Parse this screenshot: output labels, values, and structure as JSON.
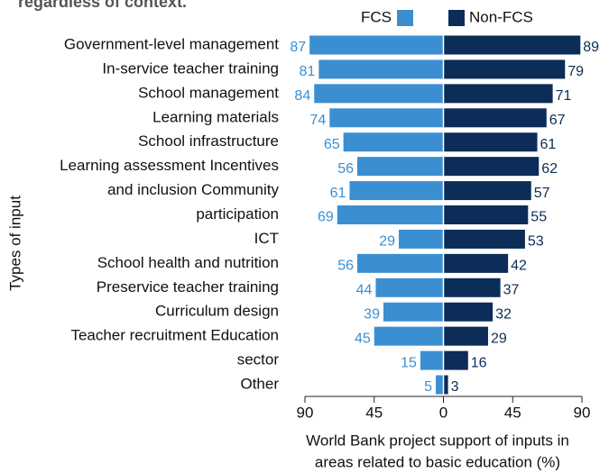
{
  "chart_data": {
    "type": "diverging_bar",
    "title": "regardless of context.",
    "categories": [
      "Government-level management",
      "In-service teacher training",
      "School management",
      "Learning materials",
      "School infrastructure",
      "Learning assessment Incentives",
      "and inclusion Community",
      "participation",
      "ICT",
      "School health and nutrition",
      "Preservice teacher training",
      "Curriculum design",
      "Teacher recruitment Education",
      "sector",
      "Other"
    ],
    "series": [
      {
        "name": "FCS",
        "color": "#3b8fd1",
        "values": [
          87,
          81,
          84,
          74,
          65,
          56,
          61,
          69,
          29,
          56,
          44,
          39,
          45,
          15,
          5
        ]
      },
      {
        "name": "Non-FCS",
        "color": "#0c2d57",
        "values": [
          89,
          79,
          71,
          67,
          61,
          62,
          57,
          55,
          53,
          42,
          37,
          32,
          29,
          16,
          3
        ]
      }
    ],
    "xlim": [
      -90,
      90
    ],
    "xticks": [
      {
        "value": -90,
        "label": "90"
      },
      {
        "value": -45,
        "label": "45"
      },
      0,
      45,
      90
    ],
    "xlabel": [
      "World Bank project support of inputs in",
      "areas related to basic education (%)"
    ],
    "ylabel": "Types of input"
  }
}
